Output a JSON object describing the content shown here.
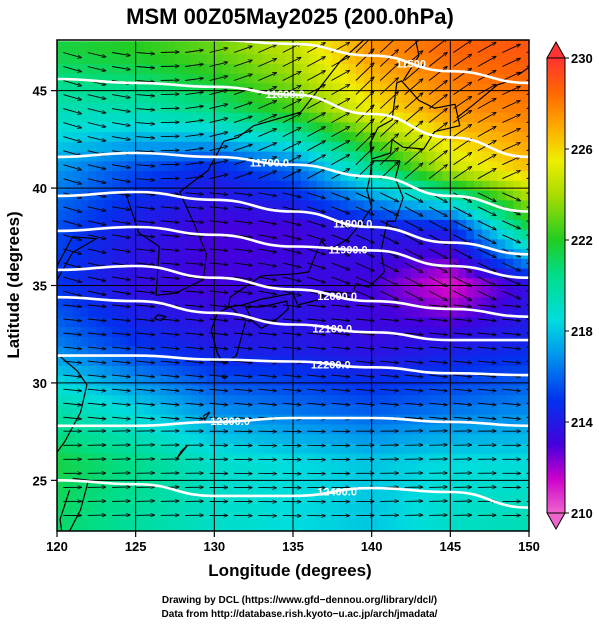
{
  "chart_data": {
    "type": "heatmap",
    "title": "MSM 00Z05May2025 (200.0hPa)",
    "xlabel": "Longitude (degrees)",
    "ylabel": "Latitude  (degrees)",
    "xlim": [
      120,
      150
    ],
    "ylim": [
      22.4,
      47.6
    ],
    "x_ticks": [
      "120",
      "125",
      "130",
      "135",
      "140",
      "145",
      "150"
    ],
    "x_tick_values": [
      120,
      125,
      130,
      135,
      140,
      145,
      150
    ],
    "y_ticks": [
      "25",
      "30",
      "35",
      "40",
      "45"
    ],
    "y_tick_values": [
      25,
      30,
      35,
      40,
      45
    ],
    "colorbar": {
      "range": [
        210,
        230
      ],
      "tick_labels": [
        "210",
        "214",
        "218",
        "222",
        "226",
        "230"
      ],
      "tick_values": [
        210,
        214,
        218,
        222,
        226,
        230
      ],
      "stops": [
        {
          "v": 210,
          "color": "#ee66cc"
        },
        {
          "v": 211.5,
          "color": "#cc00cc"
        },
        {
          "v": 213,
          "color": "#4400dd"
        },
        {
          "v": 215,
          "color": "#0033ee"
        },
        {
          "v": 217,
          "color": "#0099ee"
        },
        {
          "v": 218.5,
          "color": "#00dddd"
        },
        {
          "v": 220.5,
          "color": "#00dd88"
        },
        {
          "v": 222,
          "color": "#22cc22"
        },
        {
          "v": 224,
          "color": "#aadd00"
        },
        {
          "v": 225.5,
          "color": "#eeee00"
        },
        {
          "v": 227,
          "color": "#ffaa00"
        },
        {
          "v": 228.5,
          "color": "#ff6600"
        },
        {
          "v": 230,
          "color": "#ff3333"
        }
      ]
    },
    "temperature_field": {
      "lon": [
        120,
        125,
        130,
        135,
        140,
        145,
        150
      ],
      "lat": [
        23,
        26,
        29,
        32,
        35,
        38,
        41,
        44,
        47
      ],
      "values": [
        [
          221.0,
          220.0,
          219.0,
          218.5,
          218.0,
          219.0,
          219.5
        ],
        [
          221.5,
          220.5,
          219.0,
          218.5,
          218.0,
          218.5,
          218.5
        ],
        [
          219.5,
          218.0,
          216.5,
          216.0,
          215.5,
          216.0,
          216.5
        ],
        [
          216.5,
          215.0,
          214.0,
          214.0,
          213.5,
          214.0,
          214.5
        ],
        [
          215.0,
          213.5,
          213.0,
          213.5,
          213.0,
          211.0,
          213.5
        ],
        [
          215.5,
          214.0,
          213.0,
          213.0,
          214.0,
          214.5,
          221.5
        ],
        [
          217.0,
          215.5,
          214.5,
          216.0,
          220.0,
          224.5,
          226.5
        ],
        [
          219.5,
          219.5,
          220.5,
          222.5,
          225.5,
          227.5,
          228.0
        ],
        [
          221.5,
          222.0,
          223.0,
          224.5,
          227.5,
          228.5,
          229.0
        ]
      ]
    },
    "contours": [
      {
        "label": "11500",
        "label_lon": 142.5,
        "lat": [
          47.6,
          47.6,
          47.6,
          47.4,
          46.8,
          46.0,
          45.4
        ]
      },
      {
        "label": "11600.0",
        "label_lon": 134.5,
        "lat": [
          45.6,
          45.4,
          45.2,
          44.8,
          43.8,
          42.6,
          41.6
        ]
      },
      {
        "label": "11700.0",
        "label_lon": 133.5,
        "lat": [
          41.6,
          41.8,
          41.6,
          41.2,
          40.6,
          39.6,
          38.8
        ]
      },
      {
        "label": "11800.0",
        "label_lon": 138.8,
        "lat": [
          39.6,
          39.8,
          39.4,
          38.8,
          38.0,
          37.2,
          36.6
        ]
      },
      {
        "label": "11900.0",
        "label_lon": 138.5,
        "lat": [
          37.8,
          38.0,
          37.6,
          37.0,
          36.8,
          36.0,
          35.4
        ]
      },
      {
        "label": "12000.0",
        "label_lon": 137.8,
        "lat": [
          35.8,
          36.0,
          35.4,
          34.8,
          34.2,
          33.8,
          33.4
        ]
      },
      {
        "label": "12100.0",
        "label_lon": 137.5,
        "lat": [
          34.4,
          34.2,
          33.6,
          33.0,
          32.6,
          32.2,
          32.2
        ]
      },
      {
        "label": "12200.0",
        "label_lon": 137.4,
        "lat": [
          31.4,
          31.4,
          31.2,
          31.1,
          30.8,
          30.5,
          30.4
        ]
      },
      {
        "label": "12300.0",
        "label_lon": 131.0,
        "lat": [
          27.8,
          27.8,
          28.0,
          28.2,
          28.2,
          28.0,
          27.8
        ]
      },
      {
        "label": "12400.0",
        "label_lon": 137.8,
        "lat": [
          25.0,
          24.8,
          24.2,
          24.2,
          24.6,
          24.4,
          23.6
        ]
      }
    ],
    "wind": {
      "description": "wind vectors predominantly westerly",
      "uniform": true
    },
    "grid": true,
    "coastlines": true
  },
  "credits": {
    "line1": "Drawing by DCL (https://www.gfd−dennou.org/library/dcl/)",
    "line2": "Data from http://database.rish.kyoto−u.ac.jp/arch/jmadata/"
  }
}
